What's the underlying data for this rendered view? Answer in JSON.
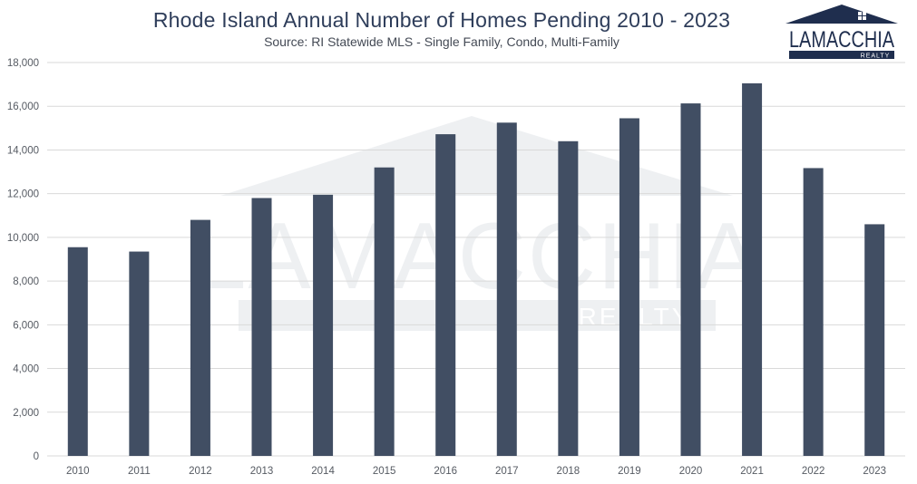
{
  "chart_data": {
    "type": "bar",
    "title": "Rhode Island Annual Number of Homes Pending 2010 - 2023",
    "subtitle": "Source: RI Statewide MLS - Single Family, Condo, Multi-Family",
    "categories": [
      "2010",
      "2011",
      "2012",
      "2013",
      "2014",
      "2015",
      "2016",
      "2017",
      "2018",
      "2019",
      "2020",
      "2021",
      "2022",
      "2023"
    ],
    "values": [
      9550,
      9350,
      10800,
      11800,
      11950,
      13200,
      14720,
      15250,
      14400,
      15450,
      16130,
      17050,
      13170,
      10600
    ],
    "y_ticks": [
      "0",
      "2,000",
      "4,000",
      "6,000",
      "8,000",
      "10,000",
      "12,000",
      "14,000",
      "16,000",
      "18,000"
    ],
    "ylim": [
      0,
      18000
    ],
    "grid": true,
    "legend": "none",
    "colors": {
      "bar": "#414e63",
      "title": "#2e3d5a",
      "logo": "#1f2e4e"
    }
  },
  "logo": {
    "brand": "LAMACCHIA",
    "tagline": "REALTY"
  },
  "watermark": {
    "brand": "LAMACCHIA",
    "tagline": "REALTY"
  }
}
